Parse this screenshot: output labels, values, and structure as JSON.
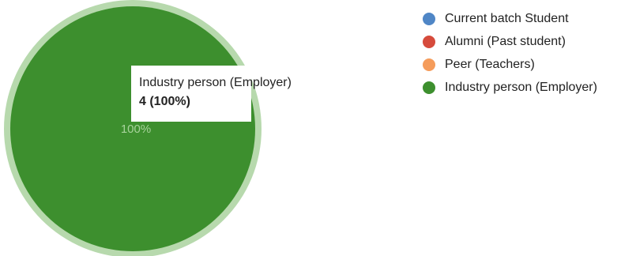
{
  "chart_data": {
    "type": "pie",
    "categories": [
      "Current batch Student",
      "Alumni (Past student)",
      "Peer (Teachers)",
      "Industry person (Employer)"
    ],
    "values": [
      0,
      0,
      0,
      4
    ],
    "colors": [
      "#4f86c6",
      "#d64b3c",
      "#f59c5b",
      "#3d8f2e"
    ],
    "slice_label": "100%",
    "legend_position": "right"
  },
  "tooltip": {
    "name": "Industry person (Employer)",
    "value_text": "4 (100%)"
  }
}
